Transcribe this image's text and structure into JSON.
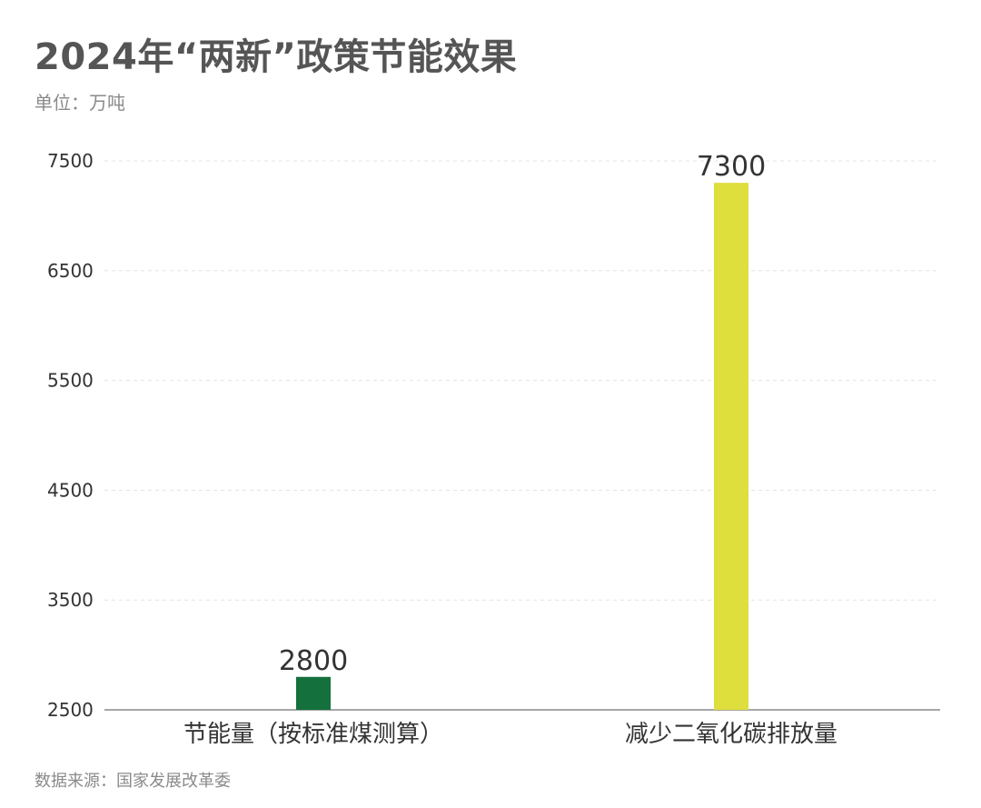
{
  "header": {
    "title": "2024年“两新”政策节能效果",
    "unit": "单位：万吨"
  },
  "footer": {
    "source": "数据来源：国家发展改革委"
  },
  "colors": {
    "bar1": "#14703c",
    "bar2": "#dede3c",
    "grid": "#e4e4e4",
    "axis": "#8a8a8a"
  },
  "chart_data": {
    "type": "bar",
    "categories": [
      "节能量（按标准煤测算）",
      "减少二氧化碳排放量"
    ],
    "values": [
      2800,
      7300
    ],
    "value_labels": [
      "2800",
      "7300"
    ],
    "yticks": [
      2500,
      3500,
      4500,
      5500,
      6500,
      7500
    ],
    "ylim": [
      2500,
      7500
    ],
    "grid": true,
    "xlabel": "",
    "ylabel": ""
  }
}
